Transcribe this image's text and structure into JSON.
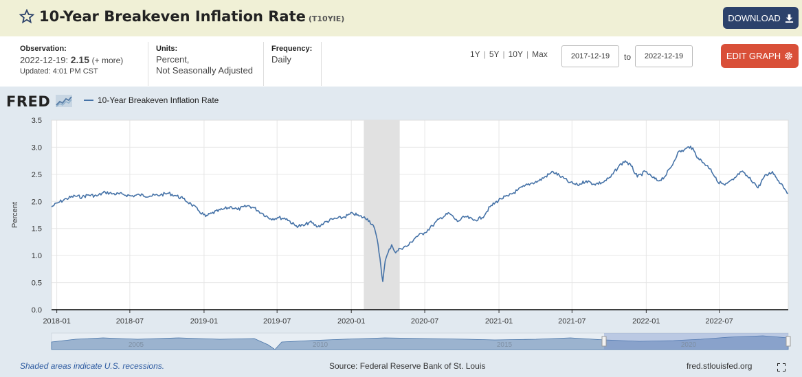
{
  "header": {
    "title": "10-Year Breakeven Inflation Rate",
    "series_id": "(T10YIE)",
    "download_label": "DOWNLOAD"
  },
  "info": {
    "observation_label": "Observation:",
    "observation_date": "2022-12-19:",
    "observation_value": "2.15",
    "observation_more": "(+ more)",
    "updated": "Updated: 4:01 PM CST",
    "units_label": "Units:",
    "units_line1": "Percent,",
    "units_line2": "Not Seasonally Adjusted",
    "frequency_label": "Frequency:",
    "frequency_value": "Daily"
  },
  "controls": {
    "range_buttons": [
      "1Y",
      "5Y",
      "10Y",
      "Max"
    ],
    "start_date": "2017-12-19",
    "to_label": "to",
    "end_date": "2022-12-19",
    "edit_label": "EDIT GRAPH"
  },
  "chart_meta": {
    "logo_text": "FRED",
    "legend_label": "10-Year Breakeven Inflation Rate",
    "series_color": "#4572a7",
    "recession_color": "#e1e1e1",
    "navigator_labels": [
      "2005",
      "2010",
      "2015",
      "2020"
    ]
  },
  "footer": {
    "recession_note": "Shaded areas indicate U.S. recessions.",
    "source": "Source: Federal Reserve Bank of St. Louis",
    "site": "fred.stlouisfed.org"
  },
  "chart_data": {
    "type": "line",
    "title": "10-Year Breakeven Inflation Rate",
    "ylabel": "Percent",
    "xlabel": "",
    "ylim": [
      0,
      3.5
    ],
    "xlim": [
      "2017-12-19",
      "2022-12-19"
    ],
    "yticks": [
      "0.0",
      "0.5",
      "1.0",
      "1.5",
      "2.0",
      "2.5",
      "3.0",
      "3.5"
    ],
    "xticks": [
      "2018-01",
      "2018-07",
      "2019-01",
      "2019-07",
      "2020-01",
      "2020-07",
      "2021-01",
      "2021-07",
      "2022-01",
      "2022-07"
    ],
    "grid": true,
    "legend": "top-left",
    "recessions": [
      {
        "start": "2020-02-01",
        "end": "2020-04-30"
      }
    ],
    "series": [
      {
        "name": "10-Year Breakeven Inflation Rate",
        "points": [
          [
            "2017-12-19",
            1.9
          ],
          [
            "2018-01-05",
            1.98
          ],
          [
            "2018-01-25",
            2.05
          ],
          [
            "2018-02-15",
            2.1
          ],
          [
            "2018-03-05",
            2.08
          ],
          [
            "2018-03-20",
            2.12
          ],
          [
            "2018-04-10",
            2.1
          ],
          [
            "2018-05-01",
            2.17
          ],
          [
            "2018-05-20",
            2.14
          ],
          [
            "2018-06-15",
            2.13
          ],
          [
            "2018-07-05",
            2.1
          ],
          [
            "2018-07-25",
            2.12
          ],
          [
            "2018-08-20",
            2.1
          ],
          [
            "2018-09-15",
            2.12
          ],
          [
            "2018-10-05",
            2.15
          ],
          [
            "2018-10-25",
            2.1
          ],
          [
            "2018-11-10",
            2.05
          ],
          [
            "2018-11-30",
            1.95
          ],
          [
            "2018-12-20",
            1.82
          ],
          [
            "2019-01-05",
            1.72
          ],
          [
            "2019-01-20",
            1.78
          ],
          [
            "2019-02-15",
            1.85
          ],
          [
            "2019-03-10",
            1.9
          ],
          [
            "2019-03-25",
            1.85
          ],
          [
            "2019-04-20",
            1.92
          ],
          [
            "2019-05-05",
            1.88
          ],
          [
            "2019-05-25",
            1.78
          ],
          [
            "2019-06-15",
            1.68
          ],
          [
            "2019-07-05",
            1.7
          ],
          [
            "2019-07-25",
            1.68
          ],
          [
            "2019-08-15",
            1.55
          ],
          [
            "2019-09-05",
            1.55
          ],
          [
            "2019-09-20",
            1.62
          ],
          [
            "2019-10-10",
            1.53
          ],
          [
            "2019-10-25",
            1.6
          ],
          [
            "2019-11-15",
            1.67
          ],
          [
            "2019-12-10",
            1.7
          ],
          [
            "2020-01-05",
            1.78
          ],
          [
            "2020-01-20",
            1.73
          ],
          [
            "2020-02-10",
            1.68
          ],
          [
            "2020-02-25",
            1.55
          ],
          [
            "2020-03-05",
            1.3
          ],
          [
            "2020-03-12",
            0.95
          ],
          [
            "2020-03-19",
            0.52
          ],
          [
            "2020-03-25",
            0.9
          ],
          [
            "2020-04-01",
            1.05
          ],
          [
            "2020-04-10",
            1.2
          ],
          [
            "2020-04-20",
            1.05
          ],
          [
            "2020-05-01",
            1.13
          ],
          [
            "2020-05-20",
            1.18
          ],
          [
            "2020-06-10",
            1.35
          ],
          [
            "2020-06-30",
            1.42
          ],
          [
            "2020-07-20",
            1.55
          ],
          [
            "2020-08-10",
            1.7
          ],
          [
            "2020-08-31",
            1.78
          ],
          [
            "2020-09-20",
            1.63
          ],
          [
            "2020-10-10",
            1.72
          ],
          [
            "2020-10-30",
            1.65
          ],
          [
            "2020-11-20",
            1.7
          ],
          [
            "2020-12-10",
            1.9
          ],
          [
            "2021-01-05",
            2.05
          ],
          [
            "2021-01-25",
            2.1
          ],
          [
            "2021-02-15",
            2.2
          ],
          [
            "2021-03-05",
            2.28
          ],
          [
            "2021-03-20",
            2.33
          ],
          [
            "2021-04-10",
            2.38
          ],
          [
            "2021-05-05",
            2.5
          ],
          [
            "2021-05-15",
            2.55
          ],
          [
            "2021-06-05",
            2.45
          ],
          [
            "2021-06-25",
            2.35
          ],
          [
            "2021-07-15",
            2.3
          ],
          [
            "2021-08-05",
            2.38
          ],
          [
            "2021-08-25",
            2.32
          ],
          [
            "2021-09-15",
            2.35
          ],
          [
            "2021-10-05",
            2.45
          ],
          [
            "2021-10-25",
            2.65
          ],
          [
            "2021-11-10",
            2.75
          ],
          [
            "2021-11-25",
            2.65
          ],
          [
            "2021-12-10",
            2.45
          ],
          [
            "2021-12-30",
            2.55
          ],
          [
            "2022-01-15",
            2.45
          ],
          [
            "2022-01-30",
            2.38
          ],
          [
            "2022-02-15",
            2.45
          ],
          [
            "2022-03-05",
            2.65
          ],
          [
            "2022-03-20",
            2.9
          ],
          [
            "2022-04-05",
            2.95
          ],
          [
            "2022-04-21",
            3.02
          ],
          [
            "2022-05-10",
            2.8
          ],
          [
            "2022-05-25",
            2.7
          ],
          [
            "2022-06-10",
            2.6
          ],
          [
            "2022-06-25",
            2.38
          ],
          [
            "2022-07-15",
            2.3
          ],
          [
            "2022-08-05",
            2.4
          ],
          [
            "2022-08-25",
            2.55
          ],
          [
            "2022-09-10",
            2.45
          ],
          [
            "2022-09-25",
            2.35
          ],
          [
            "2022-10-05",
            2.25
          ],
          [
            "2022-10-20",
            2.45
          ],
          [
            "2022-11-10",
            2.55
          ],
          [
            "2022-11-25",
            2.38
          ],
          [
            "2022-12-05",
            2.3
          ],
          [
            "2022-12-19",
            2.15
          ]
        ]
      }
    ]
  }
}
